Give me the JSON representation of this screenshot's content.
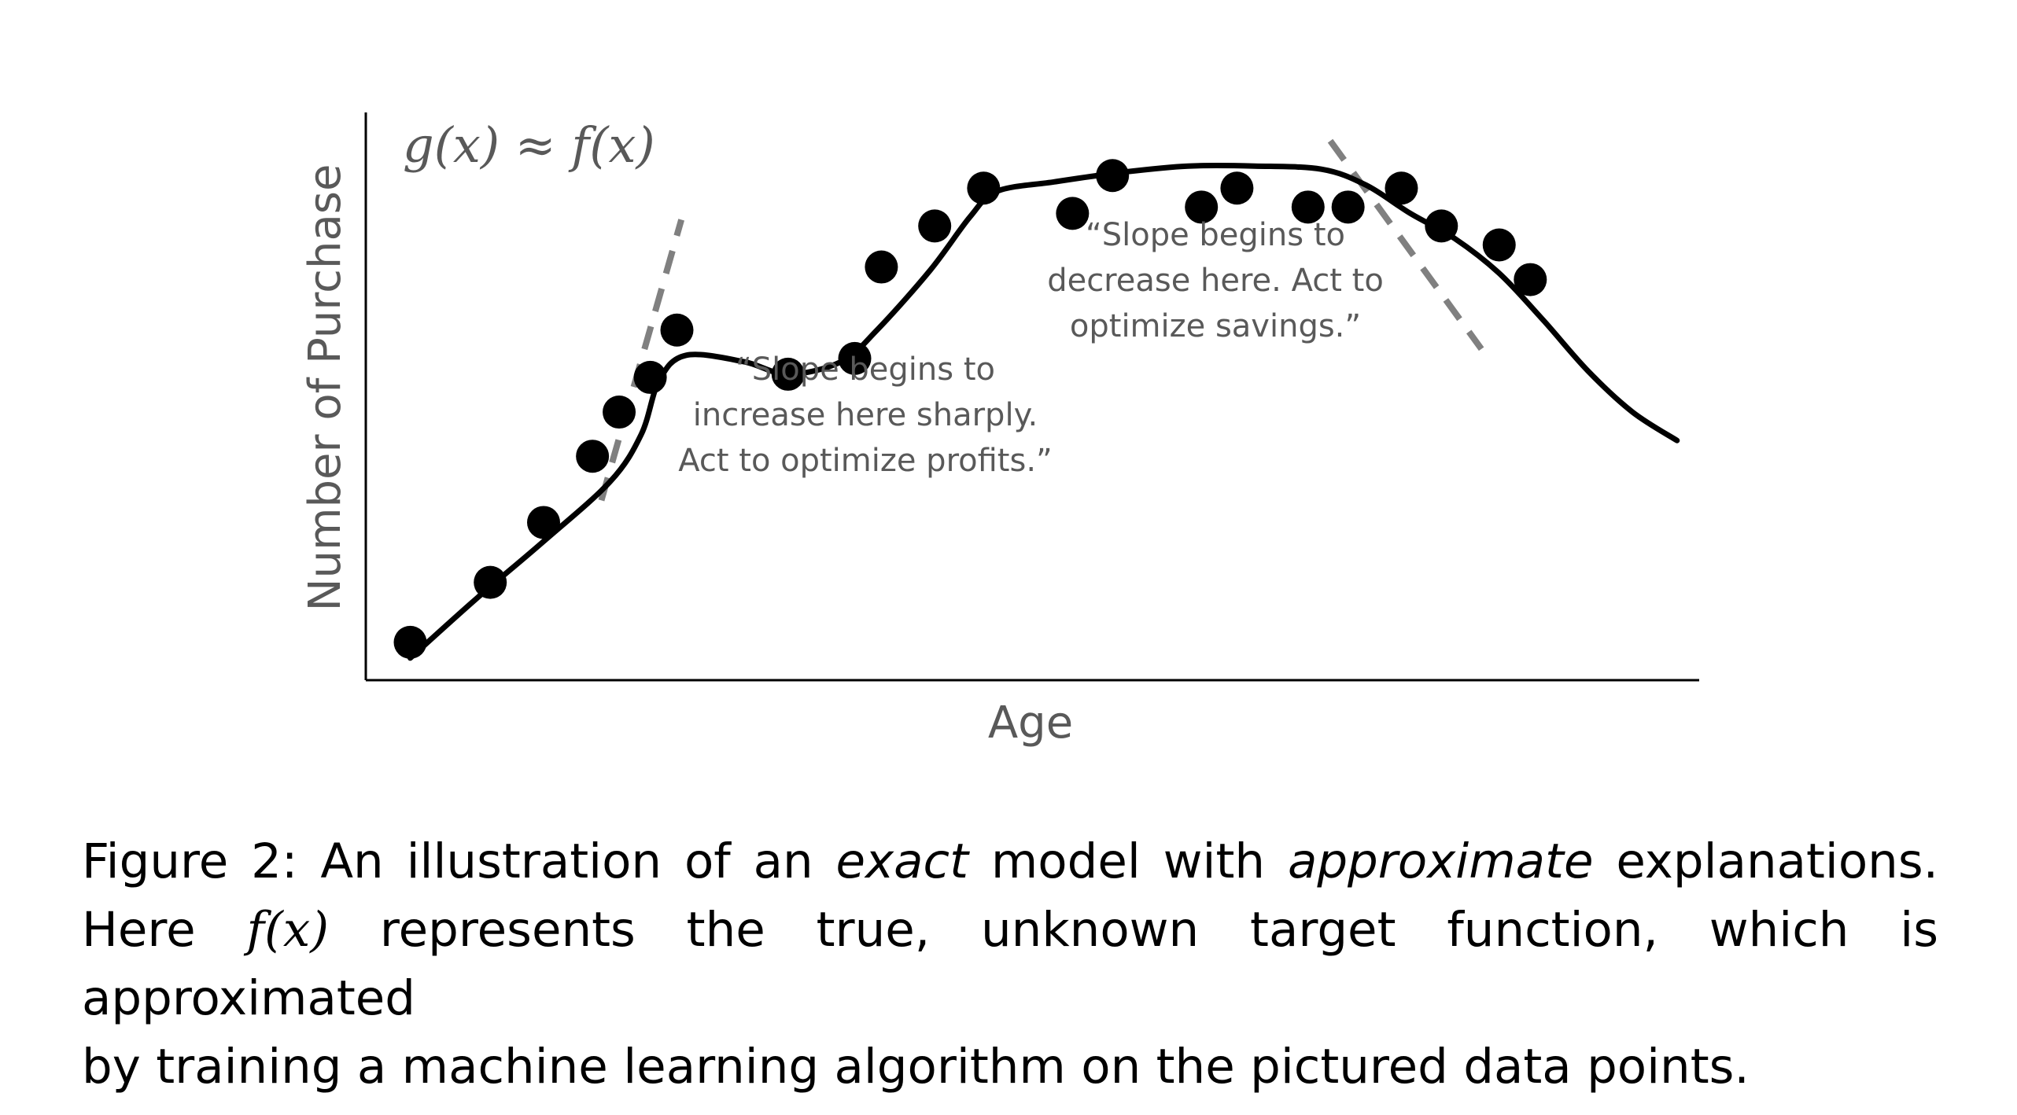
{
  "chart_data": {
    "type": "scatter",
    "xlabel": "Age",
    "ylabel": "Number of Purchase",
    "formula_label": "g(x) ≈ f(x)",
    "annotations": [
      [
        "“Slope begins to",
        "increase here sharply.",
        "Act to optimize profits.”"
      ],
      [
        "“Slope begins to",
        "decrease here. Act to",
        "optimize savings.”"
      ]
    ],
    "points": [
      {
        "x": 1.0,
        "y": 1.2
      },
      {
        "x": 2.8,
        "y": 3.1
      },
      {
        "x": 4.0,
        "y": 5.0
      },
      {
        "x": 5.1,
        "y": 7.1
      },
      {
        "x": 5.7,
        "y": 8.5
      },
      {
        "x": 6.4,
        "y": 9.6
      },
      {
        "x": 7.0,
        "y": 11.1
      },
      {
        "x": 9.5,
        "y": 9.7
      },
      {
        "x": 11.0,
        "y": 10.2
      },
      {
        "x": 11.6,
        "y": 13.1
      },
      {
        "x": 12.8,
        "y": 14.4
      },
      {
        "x": 13.9,
        "y": 15.6
      },
      {
        "x": 15.9,
        "y": 14.8
      },
      {
        "x": 16.8,
        "y": 16.0
      },
      {
        "x": 18.8,
        "y": 15.0
      },
      {
        "x": 19.6,
        "y": 15.6
      },
      {
        "x": 21.2,
        "y": 15.0
      },
      {
        "x": 22.1,
        "y": 15.0
      },
      {
        "x": 23.3,
        "y": 15.6
      },
      {
        "x": 24.2,
        "y": 14.4
      },
      {
        "x": 25.5,
        "y": 13.8
      },
      {
        "x": 26.2,
        "y": 12.7
      }
    ],
    "curve": [
      [
        1.0,
        0.7
      ],
      [
        2.5,
        2.6
      ],
      [
        4.0,
        4.4
      ],
      [
        5.5,
        6.3
      ],
      [
        6.2,
        7.8
      ],
      [
        6.6,
        9.5
      ],
      [
        7.2,
        10.3
      ],
      [
        8.5,
        10.1
      ],
      [
        9.5,
        9.7
      ],
      [
        10.7,
        10.1
      ],
      [
        11.5,
        11.1
      ],
      [
        12.7,
        13.0
      ],
      [
        13.6,
        14.7
      ],
      [
        14.2,
        15.5
      ],
      [
        15.5,
        15.8
      ],
      [
        17.0,
        16.1
      ],
      [
        18.5,
        16.3
      ],
      [
        20.0,
        16.3
      ],
      [
        21.5,
        16.2
      ],
      [
        22.5,
        15.7
      ],
      [
        23.5,
        14.8
      ],
      [
        24.5,
        14.0
      ],
      [
        25.5,
        12.9
      ],
      [
        26.5,
        11.4
      ],
      [
        27.5,
        9.8
      ],
      [
        28.5,
        8.5
      ],
      [
        29.5,
        7.6
      ]
    ],
    "tangents": [
      {
        "from": [
          5.3,
          5.7
        ],
        "to": [
          7.1,
          14.6
        ]
      },
      {
        "from": [
          21.7,
          17.1
        ],
        "to": [
          25.1,
          10.5
        ]
      }
    ],
    "xlim": [
      0,
      30
    ],
    "ylim": [
      0,
      18
    ],
    "grid": false,
    "legend": "none",
    "colors": {
      "points": "#000000",
      "curve": "#000000",
      "tangent": "#808080",
      "axis": "#000000",
      "text": "#595959"
    }
  },
  "caption": {
    "lines": [
      [
        "Figure 2:  An illustration of an ",
        "exact",
        " model with ",
        "approximate",
        " explanations."
      ],
      [
        "Here ",
        "f(x)",
        " represents the true, unknown target function, which is approximated"
      ],
      [
        "by training a machine learning algorithm on the pictured data points."
      ]
    ]
  }
}
